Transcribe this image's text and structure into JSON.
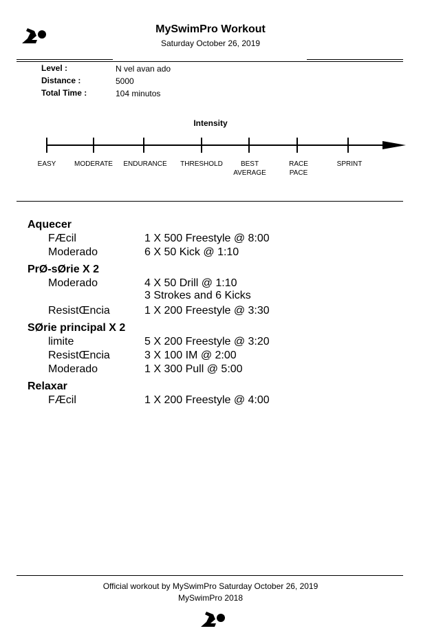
{
  "header": {
    "logo_icon": "swimmer-logo-icon",
    "title": "MySwimPro Workout",
    "date": "Saturday October 26, 2019"
  },
  "info": [
    {
      "label": "Level :",
      "value": "N vel avan ado"
    },
    {
      "label": "Distance :",
      "value": "5000"
    },
    {
      "label": "Total Time :",
      "value": "104 minutos"
    }
  ],
  "intensity": {
    "title": "Intensity",
    "labels": [
      {
        "line1": "EASY",
        "line2": ""
      },
      {
        "line1": "MODERATE",
        "line2": ""
      },
      {
        "line1": "ENDURANCE",
        "line2": ""
      },
      {
        "line1": "THRESHOLD",
        "line2": ""
      },
      {
        "line1": "BEST",
        "line2": "AVERAGE"
      },
      {
        "line1": "RACE",
        "line2": "PACE"
      },
      {
        "line1": "SPRINT",
        "line2": ""
      }
    ]
  },
  "sections": [
    {
      "title": "Aquecer",
      "rows": [
        {
          "level": "FÆcil",
          "desc": "1 X 500 Freestyle @ 8:00"
        },
        {
          "level": "Moderado",
          "desc": "6 X 50 Kick @ 1:10"
        }
      ]
    },
    {
      "title": "PrØ-sØrie X 2",
      "rows": [
        {
          "level": "Moderado",
          "desc": "4 X 50 Drill @ 1:10"
        },
        {
          "level": "",
          "desc": "3 Strokes and 6 Kicks"
        },
        {
          "level": "ResistŒncia",
          "desc": "1 X 200 Freestyle @ 3:30"
        }
      ]
    },
    {
      "title": "SØrie principal X 2",
      "rows": [
        {
          "level": "limite",
          "desc": "5 X 200 Freestyle @ 3:20"
        },
        {
          "level": "ResistŒncia",
          "desc": "3 X 100 IM @ 2:00"
        },
        {
          "level": "Moderado",
          "desc": "1 X 300 Pull @ 5:00"
        }
      ]
    },
    {
      "title": "Relaxar",
      "rows": [
        {
          "level": "FÆcil",
          "desc": "1 X 200 Freestyle @ 4:00"
        }
      ]
    }
  ],
  "footer": {
    "line1": "Official workout by MySwimPro Saturday October 26, 2019",
    "line2": "MySwimPro 2018",
    "logo_icon": "swimmer-logo-icon"
  }
}
